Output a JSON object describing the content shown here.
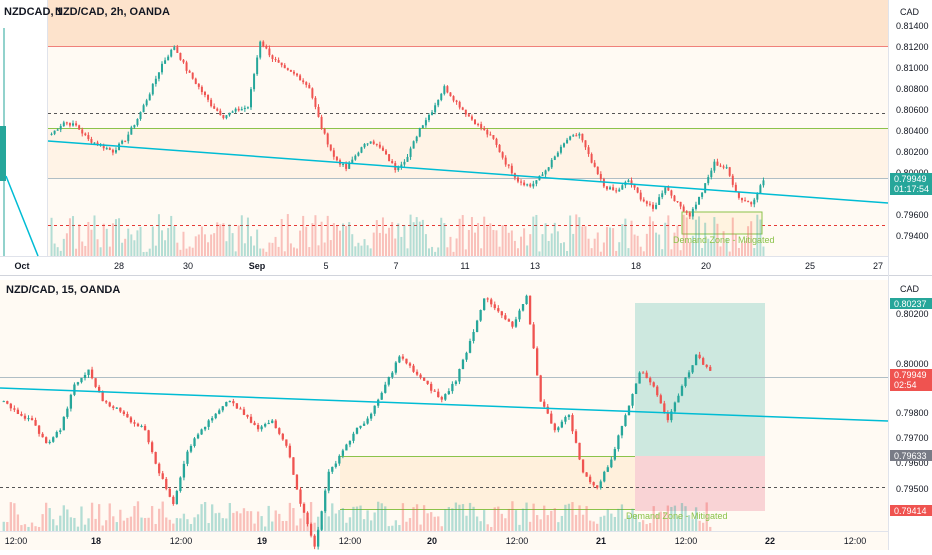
{
  "top_chart": {
    "symbol_strip": "NZDCAD, 1",
    "title": "NZD/CAD, 2h, OANDA",
    "currency": "CAD",
    "price_ticks": [
      "0.81400",
      "0.81200",
      "0.81000",
      "0.80800",
      "0.80600",
      "0.80400",
      "0.80200",
      "0.80000",
      "0.79600",
      "0.79400"
    ],
    "current_price": "0.79949",
    "countdown": "01:17:54",
    "date_labels": [
      "Oct",
      "28",
      "30",
      "Sep",
      "5",
      "7",
      "11",
      "13",
      "18",
      "20",
      "25",
      "27"
    ],
    "zone_label": "Demand Zone - Mitigated"
  },
  "bottom_chart": {
    "title": "NZD/CAD, 15, OANDA",
    "currency": "CAD",
    "price_ticks": [
      "0.80200",
      "0.80000",
      "0.79800",
      "0.79700",
      "0.79600",
      "0.79500"
    ],
    "target_price": "0.80237",
    "current_price": "0.79949",
    "countdown": "02:54",
    "entry_price": "0.79633",
    "stop_price": "0.79414",
    "time_labels": [
      "12:00",
      "18",
      "12:00",
      "19",
      "12:00",
      "20",
      "12:00",
      "21",
      "12:00",
      "22",
      "12:00"
    ],
    "zone_label": "Demand Zone - Mitigated"
  },
  "colors": {
    "up": "#26a69a",
    "down": "#ef5350",
    "trendline": "#00bcd4",
    "supply_zone": "#fde3cc",
    "demand_zone": "#fff3e6",
    "target_box": "#cde8df",
    "stop_box": "#f9d3d5"
  },
  "chart_data": [
    {
      "type": "candlestick",
      "title": "NZD/CAD, 2h, OANDA",
      "x": [
        "Oct",
        "28",
        "30",
        "Sep",
        "5",
        "7",
        "11",
        "13",
        "18",
        "20",
        "25",
        "27"
      ],
      "ylim": [
        0.793,
        0.815
      ],
      "close_path": [
        0.8035,
        0.8045,
        0.8042,
        0.803,
        0.8025,
        0.802,
        0.803,
        0.8048,
        0.807,
        0.8095,
        0.811,
        0.809,
        0.8075,
        0.806,
        0.805,
        0.8055,
        0.8058,
        0.8115,
        0.81,
        0.809,
        0.8085,
        0.8075,
        0.804,
        0.8015,
        0.8005,
        0.802,
        0.803,
        0.802,
        0.8005,
        0.8015,
        0.804,
        0.8055,
        0.8075,
        0.8062,
        0.805,
        0.804,
        0.803,
        0.801,
        0.7995,
        0.799,
        0.8,
        0.8015,
        0.803,
        0.8035,
        0.801,
        0.799,
        0.7985,
        0.7995,
        0.798,
        0.797,
        0.799,
        0.7975,
        0.7965,
        0.7985,
        0.801,
        0.8005,
        0.798,
        0.7975,
        0.7995
      ],
      "price_lines": [
        0.8121,
        0.806,
        0.8044,
        0.7999,
        0.795
      ],
      "zones": [
        {
          "from": 0.8121,
          "to": 0.815
        },
        {
          "from": 0.795,
          "to": 0.7966
        }
      ]
    },
    {
      "type": "candlestick",
      "title": "NZD/CAD, 15, OANDA",
      "x": [
        "12:00",
        "18",
        "12:00",
        "19",
        "12:00",
        "20",
        "12:00",
        "21",
        "12:00",
        "22",
        "12:00"
      ],
      "ylim": [
        0.794,
        0.8026
      ],
      "close_path": [
        0.7985,
        0.798,
        0.7978,
        0.797,
        0.7975,
        0.799,
        0.7995,
        0.7985,
        0.7982,
        0.7978,
        0.7975,
        0.796,
        0.795,
        0.7968,
        0.7975,
        0.798,
        0.7985,
        0.798,
        0.7975,
        0.7978,
        0.797,
        0.795,
        0.7935,
        0.796,
        0.7968,
        0.7975,
        0.798,
        0.799,
        0.8,
        0.7995,
        0.799,
        0.7985,
        0.7992,
        0.8005,
        0.802,
        0.8015,
        0.801,
        0.802,
        0.7985,
        0.7975,
        0.798,
        0.796,
        0.7955,
        0.7965,
        0.798,
        0.7995,
        0.799,
        0.7978,
        0.799,
        0.8,
        0.7995
      ],
      "price_lines": [
        0.7995,
        0.795
      ],
      "position": {
        "target": 0.80237,
        "entry": 0.79633,
        "stop": 0.79414
      }
    }
  ]
}
